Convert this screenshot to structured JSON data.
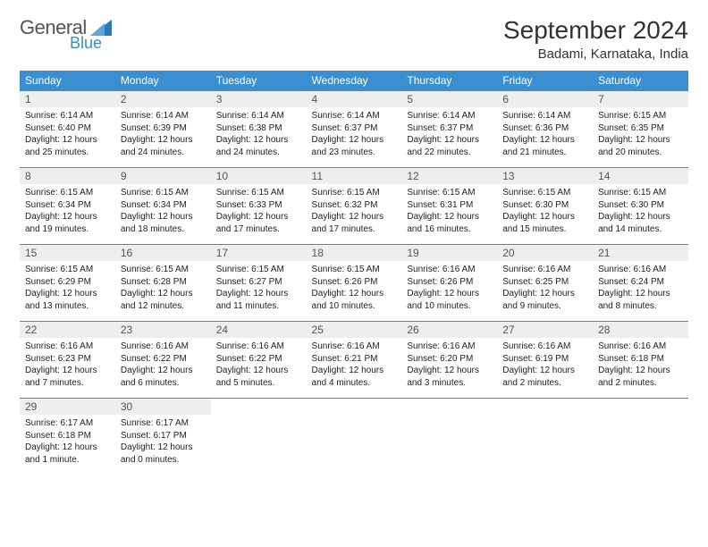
{
  "logo": {
    "text_general": "General",
    "text_blue": "Blue"
  },
  "title": {
    "month": "September 2024",
    "location": "Badami, Karnataka, India"
  },
  "weekdays": [
    "Sunday",
    "Monday",
    "Tuesday",
    "Wednesday",
    "Thursday",
    "Friday",
    "Saturday"
  ],
  "colors": {
    "header_bg": "#3a8fd0",
    "header_fg": "#ffffff",
    "daynum_bg": "#eceeef",
    "cell_border": "#3a8fd0",
    "logo_blue": "#3a8fd0",
    "logo_grey": "#555555"
  },
  "days": [
    {
      "n": "1",
      "sunrise": "6:14 AM",
      "sunset": "6:40 PM",
      "day_h": 12,
      "day_m": 25
    },
    {
      "n": "2",
      "sunrise": "6:14 AM",
      "sunset": "6:39 PM",
      "day_h": 12,
      "day_m": 24
    },
    {
      "n": "3",
      "sunrise": "6:14 AM",
      "sunset": "6:38 PM",
      "day_h": 12,
      "day_m": 24
    },
    {
      "n": "4",
      "sunrise": "6:14 AM",
      "sunset": "6:37 PM",
      "day_h": 12,
      "day_m": 23
    },
    {
      "n": "5",
      "sunrise": "6:14 AM",
      "sunset": "6:37 PM",
      "day_h": 12,
      "day_m": 22
    },
    {
      "n": "6",
      "sunrise": "6:14 AM",
      "sunset": "6:36 PM",
      "day_h": 12,
      "day_m": 21
    },
    {
      "n": "7",
      "sunrise": "6:15 AM",
      "sunset": "6:35 PM",
      "day_h": 12,
      "day_m": 20
    },
    {
      "n": "8",
      "sunrise": "6:15 AM",
      "sunset": "6:34 PM",
      "day_h": 12,
      "day_m": 19
    },
    {
      "n": "9",
      "sunrise": "6:15 AM",
      "sunset": "6:34 PM",
      "day_h": 12,
      "day_m": 18
    },
    {
      "n": "10",
      "sunrise": "6:15 AM",
      "sunset": "6:33 PM",
      "day_h": 12,
      "day_m": 17
    },
    {
      "n": "11",
      "sunrise": "6:15 AM",
      "sunset": "6:32 PM",
      "day_h": 12,
      "day_m": 17
    },
    {
      "n": "12",
      "sunrise": "6:15 AM",
      "sunset": "6:31 PM",
      "day_h": 12,
      "day_m": 16
    },
    {
      "n": "13",
      "sunrise": "6:15 AM",
      "sunset": "6:30 PM",
      "day_h": 12,
      "day_m": 15
    },
    {
      "n": "14",
      "sunrise": "6:15 AM",
      "sunset": "6:30 PM",
      "day_h": 12,
      "day_m": 14
    },
    {
      "n": "15",
      "sunrise": "6:15 AM",
      "sunset": "6:29 PM",
      "day_h": 12,
      "day_m": 13
    },
    {
      "n": "16",
      "sunrise": "6:15 AM",
      "sunset": "6:28 PM",
      "day_h": 12,
      "day_m": 12
    },
    {
      "n": "17",
      "sunrise": "6:15 AM",
      "sunset": "6:27 PM",
      "day_h": 12,
      "day_m": 11
    },
    {
      "n": "18",
      "sunrise": "6:15 AM",
      "sunset": "6:26 PM",
      "day_h": 12,
      "day_m": 10
    },
    {
      "n": "19",
      "sunrise": "6:16 AM",
      "sunset": "6:26 PM",
      "day_h": 12,
      "day_m": 10
    },
    {
      "n": "20",
      "sunrise": "6:16 AM",
      "sunset": "6:25 PM",
      "day_h": 12,
      "day_m": 9
    },
    {
      "n": "21",
      "sunrise": "6:16 AM",
      "sunset": "6:24 PM",
      "day_h": 12,
      "day_m": 8
    },
    {
      "n": "22",
      "sunrise": "6:16 AM",
      "sunset": "6:23 PM",
      "day_h": 12,
      "day_m": 7
    },
    {
      "n": "23",
      "sunrise": "6:16 AM",
      "sunset": "6:22 PM",
      "day_h": 12,
      "day_m": 6
    },
    {
      "n": "24",
      "sunrise": "6:16 AM",
      "sunset": "6:22 PM",
      "day_h": 12,
      "day_m": 5
    },
    {
      "n": "25",
      "sunrise": "6:16 AM",
      "sunset": "6:21 PM",
      "day_h": 12,
      "day_m": 4
    },
    {
      "n": "26",
      "sunrise": "6:16 AM",
      "sunset": "6:20 PM",
      "day_h": 12,
      "day_m": 3
    },
    {
      "n": "27",
      "sunrise": "6:16 AM",
      "sunset": "6:19 PM",
      "day_h": 12,
      "day_m": 2
    },
    {
      "n": "28",
      "sunrise": "6:16 AM",
      "sunset": "6:18 PM",
      "day_h": 12,
      "day_m": 2
    },
    {
      "n": "29",
      "sunrise": "6:17 AM",
      "sunset": "6:18 PM",
      "day_h": 12,
      "day_m": 1
    },
    {
      "n": "30",
      "sunrise": "6:17 AM",
      "sunset": "6:17 PM",
      "day_h": 12,
      "day_m": 0
    }
  ],
  "layout": {
    "first_day_column": 0,
    "rows": 5,
    "cols": 7
  }
}
